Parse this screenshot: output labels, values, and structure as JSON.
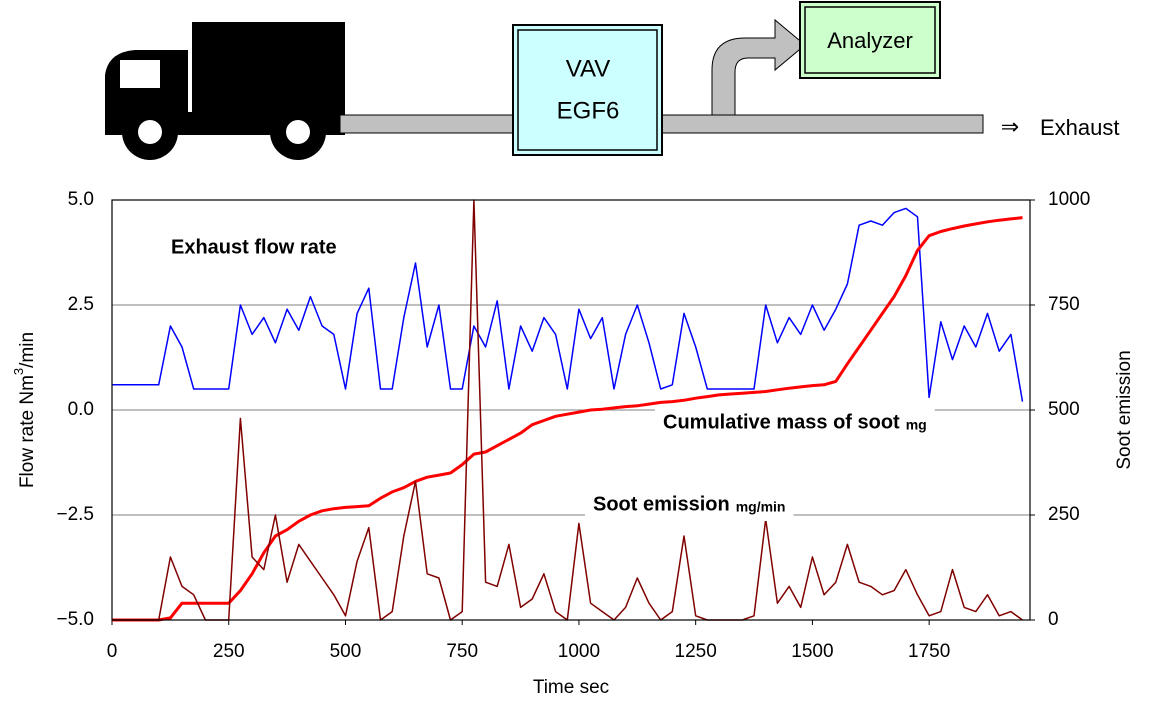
{
  "diagram": {
    "boxes": [
      {
        "lines": [
          "VAV",
          "EGF6"
        ]
      },
      {
        "lines": [
          "Analyzer"
        ]
      }
    ],
    "outlet_arrow": "⇒",
    "outlet": "Exhaust"
  },
  "chart_data": {
    "type": "line",
    "xlabel": "Time  sec",
    "ylabel": {
      "text": "Flow rate  Nm",
      "sup": "3",
      "tail": "/min"
    },
    "y2label": "Soot emission",
    "xlim": [
      0,
      1966
    ],
    "xticks": [
      0,
      250,
      500,
      750,
      1000,
      1250,
      1500,
      1750
    ],
    "ylim": [
      -5,
      5
    ],
    "yticks": [
      {
        "value": -5,
        "label": "−5.0"
      },
      {
        "value": -2.5,
        "label": "−2.5"
      },
      {
        "value": 0,
        "label": "0.0"
      },
      {
        "value": 2.5,
        "label": "2.5"
      },
      {
        "value": 5,
        "label": "5.0"
      }
    ],
    "y2lim": [
      0,
      1000
    ],
    "y2ticks": [
      0,
      250,
      500,
      750,
      1000
    ],
    "grid": true,
    "x": [
      0,
      25,
      50,
      75,
      100,
      125,
      150,
      175,
      200,
      225,
      250,
      275,
      300,
      325,
      350,
      375,
      400,
      425,
      450,
      475,
      500,
      525,
      550,
      575,
      600,
      625,
      650,
      675,
      700,
      725,
      750,
      775,
      800,
      825,
      850,
      875,
      900,
      925,
      950,
      975,
      1000,
      1025,
      1050,
      1075,
      1100,
      1125,
      1150,
      1175,
      1200,
      1225,
      1250,
      1275,
      1300,
      1325,
      1350,
      1375,
      1400,
      1425,
      1450,
      1475,
      1500,
      1525,
      1550,
      1575,
      1600,
      1625,
      1650,
      1675,
      1700,
      1725,
      1750,
      1775,
      1800,
      1825,
      1850,
      1875,
      1900,
      1925,
      1950
    ],
    "series": [
      {
        "name": "Exhaust flow rate",
        "color": "#0000ff",
        "width": 1.5,
        "values": [
          0.6,
          0.6,
          0.6,
          0.6,
          0.6,
          2.0,
          1.5,
          0.5,
          0.5,
          0.5,
          0.5,
          2.5,
          1.8,
          2.2,
          1.6,
          2.4,
          1.9,
          2.7,
          2.0,
          1.8,
          0.5,
          2.3,
          2.9,
          0.5,
          0.5,
          2.2,
          3.5,
          1.5,
          2.5,
          0.5,
          0.5,
          2.0,
          1.5,
          2.6,
          0.5,
          2.0,
          1.4,
          2.2,
          1.8,
          0.5,
          2.4,
          1.7,
          2.2,
          0.5,
          1.8,
          2.5,
          1.6,
          0.5,
          0.6,
          2.3,
          1.5,
          0.5,
          0.5,
          0.5,
          0.5,
          0.5,
          2.5,
          1.6,
          2.2,
          1.8,
          2.5,
          1.9,
          2.4,
          3.0,
          4.4,
          4.5,
          4.4,
          4.7,
          4.8,
          4.6,
          0.3,
          2.1,
          1.2,
          2.0,
          1.5,
          2.3,
          1.4,
          1.8,
          0.2
        ]
      },
      {
        "name": "Cumulative mass of soot",
        "unit": "mg",
        "color": "#ff0000",
        "width": 3,
        "axis": "y2",
        "values": [
          0,
          0,
          0,
          0,
          0,
          5,
          40,
          40,
          40,
          40,
          40,
          70,
          110,
          160,
          200,
          215,
          235,
          250,
          260,
          265,
          268,
          270,
          272,
          290,
          305,
          315,
          330,
          340,
          345,
          350,
          370,
          395,
          400,
          415,
          430,
          445,
          465,
          475,
          485,
          490,
          495,
          500,
          502,
          505,
          508,
          510,
          514,
          518,
          520,
          523,
          528,
          532,
          536,
          538,
          540,
          542,
          544,
          548,
          552,
          555,
          558,
          560,
          568,
          610,
          650,
          690,
          730,
          770,
          820,
          880,
          915,
          925,
          932,
          938,
          943,
          948,
          952,
          955,
          958
        ]
      },
      {
        "name": "Soot emission",
        "unit": "mg/min",
        "color": "#800000",
        "width": 1.5,
        "axis": "y2",
        "values": [
          0,
          0,
          0,
          0,
          0,
          150,
          80,
          60,
          0,
          0,
          0,
          480,
          150,
          120,
          250,
          90,
          180,
          140,
          100,
          60,
          10,
          140,
          220,
          0,
          20,
          200,
          330,
          110,
          100,
          0,
          20,
          1000,
          90,
          80,
          180,
          30,
          50,
          110,
          20,
          0,
          230,
          40,
          20,
          0,
          30,
          100,
          40,
          0,
          20,
          200,
          10,
          0,
          0,
          0,
          0,
          10,
          240,
          40,
          80,
          30,
          150,
          60,
          90,
          180,
          90,
          80,
          60,
          70,
          120,
          60,
          10,
          20,
          120,
          30,
          20,
          60,
          10,
          20,
          0
        ]
      }
    ]
  }
}
